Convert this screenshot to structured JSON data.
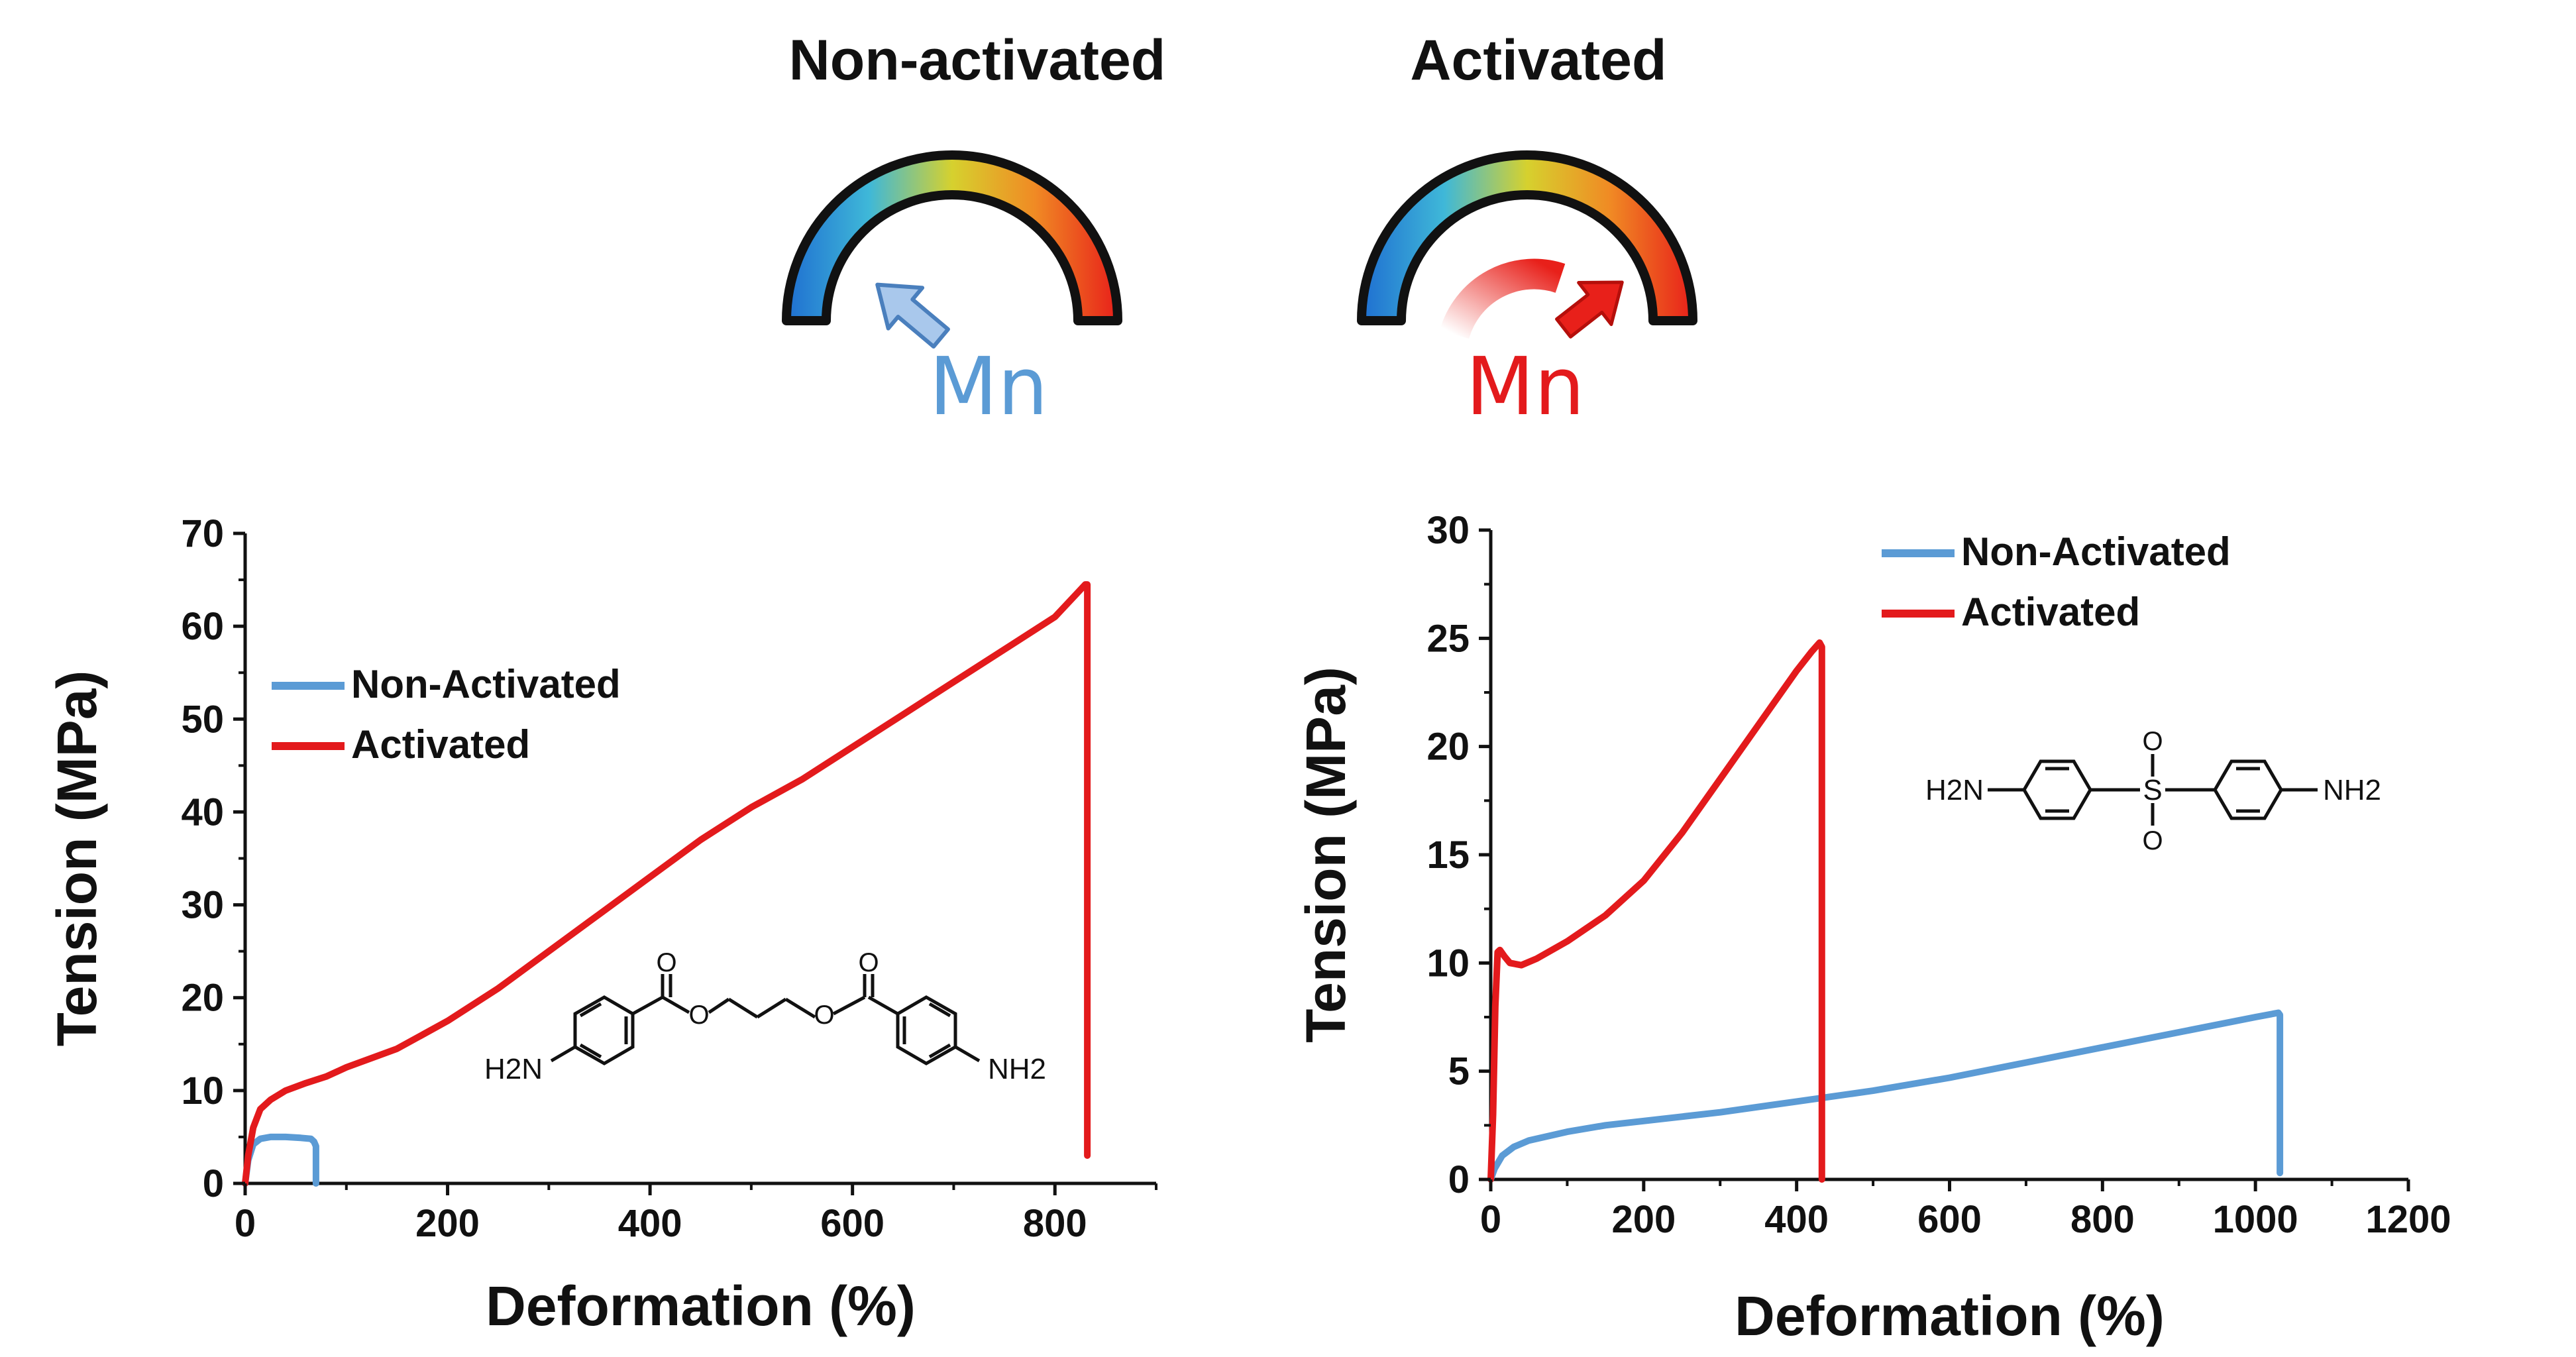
{
  "header": {
    "left_title": "Non-activated",
    "right_title": "Activated",
    "left_mn": "Mn",
    "right_mn": "Mn"
  },
  "colors": {
    "non_activated": "#5b9bd5",
    "activated": "#e31a1c",
    "gauge_stops": [
      "#1f6fd1",
      "#3fb8d8",
      "#d6d12e",
      "#f08a24",
      "#e8201a"
    ]
  },
  "chart_data": [
    {
      "type": "line",
      "xlabel": "Deformation (%)",
      "ylabel": "Tension (MPa)",
      "xlim": [
        0,
        900
      ],
      "ylim": [
        0,
        70
      ],
      "xticks": [
        0,
        200,
        400,
        600,
        800
      ],
      "yticks": [
        0,
        10,
        20,
        30,
        40,
        50,
        60,
        70
      ],
      "legend_position": "upper-left",
      "molecule": "propanediol bis(4-aminobenzoate)",
      "molecule_labels": [
        "H2N",
        "NH2",
        "O",
        "O",
        "O",
        "O"
      ],
      "series": [
        {
          "name": "Non-Activated",
          "x": [
            0,
            3,
            8,
            15,
            25,
            40,
            55,
            65,
            68,
            70,
            70
          ],
          "y": [
            0,
            2.5,
            4.2,
            4.8,
            5.0,
            5.0,
            4.9,
            4.8,
            4.5,
            4.0,
            0
          ]
        },
        {
          "name": "Activated",
          "x": [
            0,
            3,
            8,
            15,
            25,
            40,
            60,
            80,
            100,
            150,
            200,
            250,
            300,
            350,
            400,
            450,
            500,
            550,
            600,
            650,
            700,
            750,
            800,
            830,
            832,
            832
          ],
          "y": [
            0,
            3,
            6,
            8,
            9,
            10,
            10.8,
            11.5,
            12.5,
            14.5,
            17.5,
            21,
            25,
            29,
            33,
            37,
            40.5,
            43.5,
            47,
            50.5,
            54,
            57.5,
            61,
            64.5,
            64.5,
            3
          ]
        }
      ]
    },
    {
      "type": "line",
      "xlabel": "Deformation (%)",
      "ylabel": "Tension (MPa)",
      "xlim": [
        0,
        1200
      ],
      "ylim": [
        0,
        30
      ],
      "xticks": [
        0,
        200,
        400,
        600,
        800,
        1000,
        1200
      ],
      "yticks": [
        0,
        5,
        10,
        15,
        20,
        25,
        30
      ],
      "legend_position": "upper-right",
      "molecule": "4,4'-diaminodiphenyl sulfone",
      "molecule_labels": [
        "H2N",
        "NH2",
        "S",
        "O",
        "O"
      ],
      "series": [
        {
          "name": "Non-Activated",
          "x": [
            0,
            5,
            15,
            30,
            50,
            100,
            150,
            200,
            300,
            400,
            500,
            600,
            700,
            800,
            900,
            1000,
            1030,
            1032,
            1032
          ],
          "y": [
            0,
            0.5,
            1.1,
            1.5,
            1.8,
            2.2,
            2.5,
            2.7,
            3.1,
            3.6,
            4.1,
            4.7,
            5.4,
            6.1,
            6.8,
            7.5,
            7.7,
            7.6,
            0.3
          ]
        },
        {
          "name": "Activated",
          "x": [
            0,
            3,
            6,
            9,
            12,
            18,
            25,
            40,
            60,
            100,
            150,
            200,
            250,
            300,
            350,
            400,
            420,
            430,
            433,
            433
          ],
          "y": [
            0,
            3,
            8,
            10.5,
            10.6,
            10.3,
            10.0,
            9.9,
            10.2,
            11.0,
            12.2,
            13.8,
            16.0,
            18.5,
            21.0,
            23.5,
            24.4,
            24.8,
            24.6,
            0
          ]
        }
      ]
    }
  ]
}
